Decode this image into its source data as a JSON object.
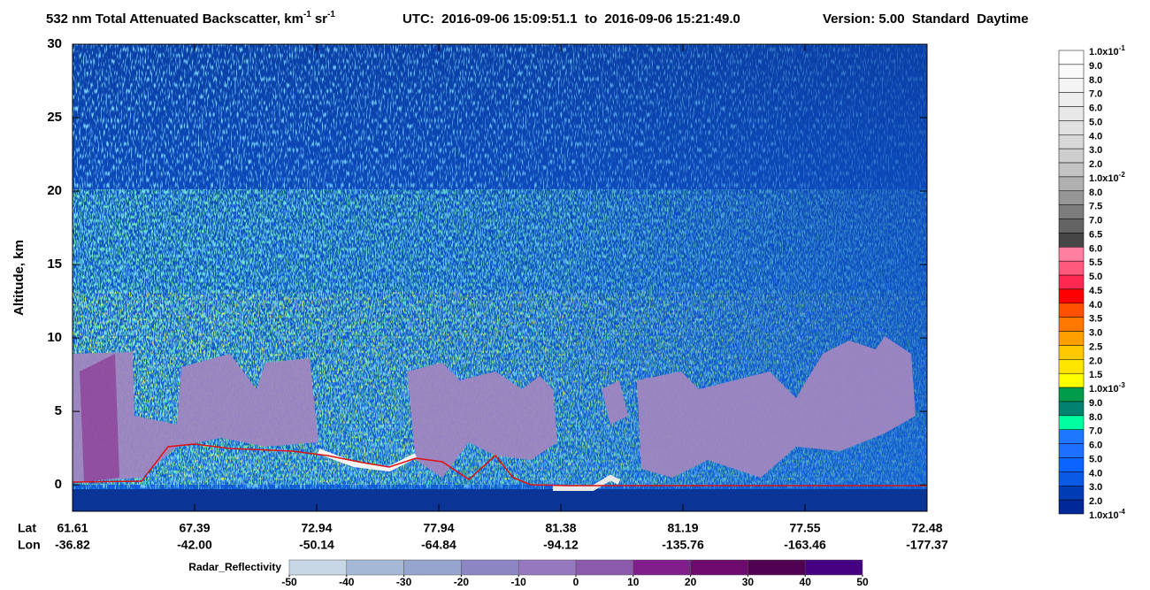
{
  "chart_data": {
    "type": "curtain",
    "title": {
      "text": "532 nm Total Attenuated Backscatter, km",
      "sup1": "-1",
      "unit2": "sr",
      "sup2": "-1",
      "utc": "UTC:  2016-09-06 15:09:51.1  to  2016-09-06 15:21:49.0",
      "version": "Version: 5.00  Standard  Daytime"
    },
    "ylabel": "Altitude, km",
    "ylim": [
      -1.8,
      30
    ],
    "yticks": [
      0,
      5,
      10,
      15,
      20,
      25,
      30
    ],
    "x_rows": [
      "Lat",
      "Lon"
    ],
    "lat": [
      "61.61",
      "67.39",
      "72.94",
      "77.94",
      "81.38",
      "81.19",
      "77.55",
      "72.48"
    ],
    "lon": [
      "-36.82",
      "-42.00",
      "-50.14",
      "-64.84",
      "-94.12",
      "-135.76",
      "-163.46",
      "-177.37"
    ],
    "colorbar": {
      "labels": [
        {
          "text": "1.0x10",
          "sup": "-1"
        },
        {
          "text": "9.0"
        },
        {
          "text": "8.0"
        },
        {
          "text": "7.0"
        },
        {
          "text": "6.0"
        },
        {
          "text": "5.0"
        },
        {
          "text": "4.0"
        },
        {
          "text": "3.0"
        },
        {
          "text": "2.0"
        },
        {
          "text": "1.0x10",
          "sup": "-2"
        },
        {
          "text": "8.0"
        },
        {
          "text": "7.5"
        },
        {
          "text": "7.0"
        },
        {
          "text": "6.5"
        },
        {
          "text": "6.0"
        },
        {
          "text": "5.5"
        },
        {
          "text": "5.0"
        },
        {
          "text": "4.5"
        },
        {
          "text": "4.0"
        },
        {
          "text": "3.5"
        },
        {
          "text": "3.0"
        },
        {
          "text": "2.5"
        },
        {
          "text": "2.0"
        },
        {
          "text": "1.5"
        },
        {
          "text": "1.0x10",
          "sup": "-3"
        },
        {
          "text": "9.0"
        },
        {
          "text": "8.0"
        },
        {
          "text": "7.0"
        },
        {
          "text": "6.0"
        },
        {
          "text": "5.0"
        },
        {
          "text": "4.0"
        },
        {
          "text": "3.0"
        },
        {
          "text": "2.0"
        },
        {
          "text": "1.0x10",
          "sup": "-4"
        }
      ],
      "colors": [
        "#ffffff",
        "#fafafa",
        "#f4f4f4",
        "#eeeeee",
        "#e8e8e8",
        "#e1e1e1",
        "#d8d8d8",
        "#cecece",
        "#c4c4c4",
        "#b0b0b0",
        "#969696",
        "#7d7d7d",
        "#646464",
        "#464646",
        "#ff7fa0",
        "#ff5a7d",
        "#ff2850",
        "#ff0000",
        "#ff5000",
        "#ff7800",
        "#ffa000",
        "#ffc800",
        "#ffe600",
        "#ffff00",
        "#009b4b",
        "#00826e",
        "#00ffa0",
        "#1e78ff",
        "#1e6eff",
        "#0a64ff",
        "#0a5ae6",
        "#003cb4",
        "#002896"
      ]
    },
    "radar_colorbar": {
      "label": "Radar_Reflectivity",
      "lim": [
        -50,
        50
      ],
      "ticks": [
        -50,
        -40,
        -30,
        -20,
        -10,
        0,
        10,
        20,
        30,
        40,
        50
      ],
      "colors": [
        "#c8d7e6",
        "#a5b9d7",
        "#96a5cd",
        "#8c87c3",
        "#9678be",
        "#8c5aaa",
        "#821e8c",
        "#6e0a6e",
        "#500050",
        "#460082"
      ]
    }
  }
}
